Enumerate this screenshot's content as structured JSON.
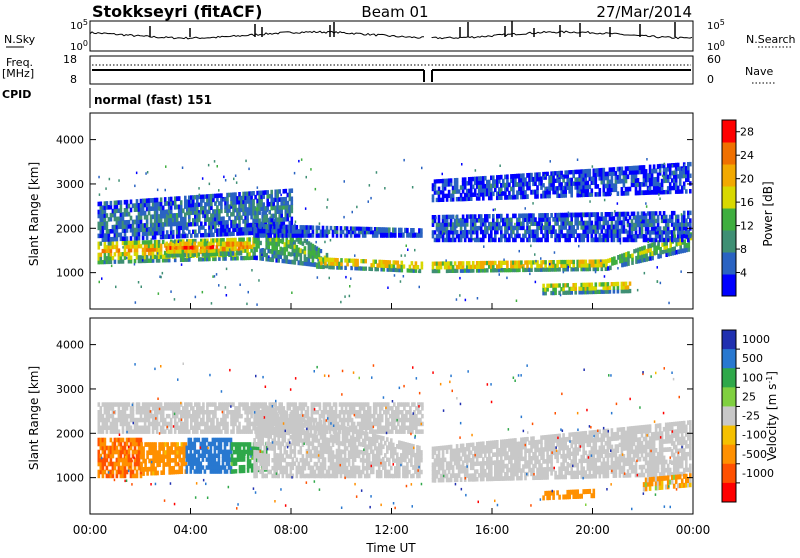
{
  "header": {
    "station": "Stokkseyri (fitACF)",
    "beam": "Beam 01",
    "date": "27/Mar/2014"
  },
  "panels": {
    "nsky": {
      "label": "N.Sky",
      "left_ticks": [
        "10^5",
        "10^0"
      ],
      "right_ticks": [
        "10^5",
        "10^0"
      ],
      "right_label": "N.Search"
    },
    "freq": {
      "label_top": "Freq.",
      "label_unit": "[MHz]",
      "left_ticks": [
        "18",
        "8"
      ],
      "right_ticks": [
        "60",
        "0"
      ],
      "right_label": "Nave"
    },
    "cpid": {
      "label": "CPID",
      "value": "normal (fast) 151"
    }
  },
  "colors": {
    "power_scale": [
      "#0000ff",
      "#2a63c2",
      "#3f8f74",
      "#3fae3f",
      "#d8d800",
      "#f2a900",
      "#f07000",
      "#ff0000"
    ],
    "velocity_scale": [
      "#2030b0",
      "#2878d0",
      "#2fa84a",
      "#80d040",
      "#c8c8c8",
      "#f5c000",
      "#ff9000",
      "#ff5000",
      "#ff0000"
    ]
  },
  "chart_data": [
    {
      "type": "heatmap",
      "parameter": "power",
      "ylabel": "Slant Range [km]",
      "yticks": [
        "1000",
        "2000",
        "3000",
        "4000"
      ],
      "ylim": [
        180,
        4600
      ],
      "colorbar_label": "Power [dB]",
      "colorbar_ticks": [
        "4",
        "8",
        "12",
        "16",
        "20",
        "24",
        "28"
      ],
      "clim": [
        0,
        30
      ],
      "xlim": [
        "00:00",
        "24:00"
      ],
      "bands": [
        {
          "t": [
            0.3,
            6.5
          ],
          "range_start": [
            1200,
            1300
          ],
          "range_end": [
            1700,
            1800
          ],
          "level": 22
        },
        {
          "t": [
            3.0,
            6.0
          ],
          "range_start": [
            1350,
            1400
          ],
          "range_end": [
            1700,
            1700
          ],
          "level": 25
        },
        {
          "t": [
            6.5,
            9.5
          ],
          "range_start": [
            1300,
            1100
          ],
          "range_end": [
            2500,
            1400
          ],
          "level": 14
        },
        {
          "t": [
            9.0,
            13.2
          ],
          "range_start": [
            1100,
            1000
          ],
          "range_end": [
            1350,
            1250
          ],
          "level": 22
        },
        {
          "t": [
            13.6,
            20.5
          ],
          "range_start": [
            1000,
            1050
          ],
          "range_end": [
            1250,
            1300
          ],
          "level": 22
        },
        {
          "t": [
            20.5,
            23.9
          ],
          "range_start": [
            1050,
            1500
          ],
          "range_end": [
            1300,
            2000
          ],
          "level": 16
        },
        {
          "t": [
            0.3,
            8.0
          ],
          "range_start": [
            1700,
            1900
          ],
          "range_end": [
            2600,
            2900
          ],
          "level": 8
        },
        {
          "t": [
            6.5,
            13.2
          ],
          "range_start": [
            1800,
            1800
          ],
          "range_end": [
            2100,
            2000
          ],
          "level": 6
        },
        {
          "t": [
            13.6,
            23.9
          ],
          "range_start": [
            1700,
            1700
          ],
          "range_end": [
            2300,
            2400
          ],
          "level": 6
        },
        {
          "t": [
            13.6,
            23.9
          ],
          "range_start": [
            2600,
            2800
          ],
          "range_end": [
            3100,
            3500
          ],
          "level": 5
        },
        {
          "t": [
            18.0,
            21.5
          ],
          "range_start": [
            500,
            550
          ],
          "range_end": [
            750,
            800
          ],
          "level": 20
        }
      ]
    },
    {
      "type": "heatmap",
      "parameter": "velocity",
      "ylabel": "Slant Range [km]",
      "yticks": [
        "1000",
        "2000",
        "3000",
        "4000"
      ],
      "ylim": [
        180,
        4600
      ],
      "xlabel": "Time UT",
      "xticks": [
        "00:00",
        "04:00",
        "08:00",
        "12:00",
        "16:00",
        "20:00",
        "00:00"
      ],
      "colorbar_label": "Velocity [m s^-1]",
      "colorbar_ticks": [
        "1000",
        "500",
        "100",
        "25",
        "-25",
        "-100",
        "-500",
        "-1000"
      ],
      "bands": [
        {
          "t": [
            0.3,
            2.0
          ],
          "range_start": [
            1000,
            1000
          ],
          "range_end": [
            1900,
            1900
          ],
          "velocity": -300
        },
        {
          "t": [
            2.0,
            3.8
          ],
          "range_start": [
            1050,
            1100
          ],
          "range_end": [
            1800,
            1800
          ],
          "velocity": -150
        },
        {
          "t": [
            3.8,
            5.6
          ],
          "range_start": [
            1100,
            1100
          ],
          "range_end": [
            1900,
            1900
          ],
          "velocity": 600
        },
        {
          "t": [
            5.6,
            7.0
          ],
          "range_start": [
            1100,
            1150
          ],
          "range_end": [
            1800,
            1800
          ],
          "velocity": 150
        },
        {
          "t": [
            6.5,
            13.2
          ],
          "range_start": [
            1000,
            1000
          ],
          "range_end": [
            2700,
            1700
          ],
          "velocity": 0
        },
        {
          "t": [
            13.6,
            23.9
          ],
          "range_start": [
            900,
            1050
          ],
          "range_end": [
            1700,
            2300
          ],
          "velocity": 0
        },
        {
          "t": [
            0.3,
            13.2
          ],
          "range_start": [
            2000,
            2000
          ],
          "range_end": [
            2700,
            2700
          ],
          "velocity": 0
        },
        {
          "t": [
            18.0,
            20.0
          ],
          "range_start": [
            500,
            550
          ],
          "range_end": [
            700,
            750
          ],
          "velocity": -200
        },
        {
          "t": [
            22.0,
            23.9
          ],
          "range_start": [
            700,
            800
          ],
          "range_end": [
            1000,
            1100
          ],
          "velocity": -50
        }
      ]
    }
  ]
}
